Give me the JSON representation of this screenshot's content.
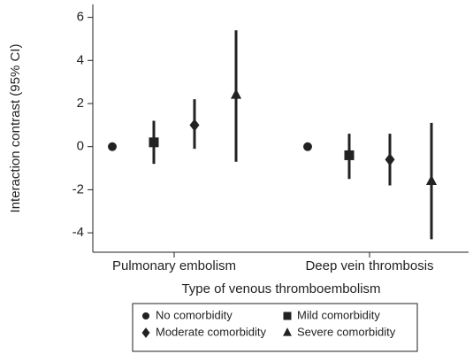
{
  "chart_data": {
    "type": "errorbar",
    "x_label": "Type of venous thromboembolism",
    "y_label": "Interaction contrast (95% CI)",
    "categories": [
      "Pulmonary embolism",
      "Deep vein thrombosis"
    ],
    "ylim": [
      -4.9,
      6.6
    ],
    "yticks": [
      -4,
      -2,
      0,
      2,
      4,
      6
    ],
    "series": [
      {
        "name": "No comorbidity",
        "marker": "circle",
        "color": "#222222",
        "values": [
          0,
          0
        ],
        "lower": [
          0,
          0
        ],
        "upper": [
          0,
          0
        ]
      },
      {
        "name": "Mild comorbidity",
        "marker": "square",
        "color": "#222222",
        "values": [
          0.2,
          -0.4
        ],
        "lower": [
          -0.8,
          -1.5
        ],
        "upper": [
          1.2,
          0.6
        ]
      },
      {
        "name": "Moderate comorbidity",
        "marker": "diamond",
        "color": "#222222",
        "values": [
          1.0,
          -0.6
        ],
        "lower": [
          -0.1,
          -1.8
        ],
        "upper": [
          2.2,
          0.6
        ]
      },
      {
        "name": "Severe comorbidity",
        "marker": "triangle",
        "color": "#222222",
        "values": [
          2.4,
          -1.6
        ],
        "lower": [
          -0.7,
          -4.3
        ],
        "upper": [
          5.4,
          1.1
        ]
      }
    ]
  }
}
